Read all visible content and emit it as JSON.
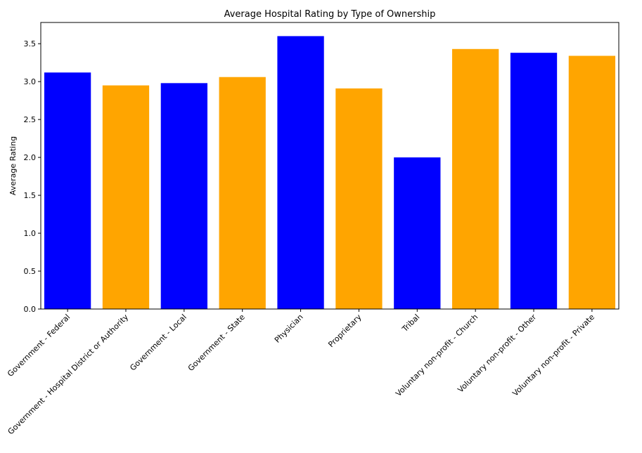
{
  "chart_data": {
    "type": "bar",
    "title": "Average Hospital Rating by Type of Ownership",
    "xlabel": "",
    "ylabel": "Average Rating",
    "ylim": [
      0,
      3.78
    ],
    "yticks": [
      0.0,
      0.5,
      1.0,
      1.5,
      2.0,
      2.5,
      3.0,
      3.5
    ],
    "ytick_labels": [
      "0.0",
      "0.5",
      "1.0",
      "1.5",
      "2.0",
      "2.5",
      "3.0",
      "3.5"
    ],
    "grid": false,
    "categories": [
      "Government - Federal",
      "Government - Hospital District or Authority",
      "Government - Local",
      "Government - State",
      "Physician",
      "Proprietary",
      "Tribal",
      "Voluntary non-profit - Church",
      "Voluntary non-profit - Other",
      "Voluntary non-profit - Private"
    ],
    "values": [
      3.12,
      2.95,
      2.98,
      3.06,
      3.6,
      2.91,
      2.0,
      3.43,
      3.38,
      3.34
    ],
    "colors": [
      "#0000ff",
      "#ffa500",
      "#0000ff",
      "#ffa500",
      "#0000ff",
      "#ffa500",
      "#0000ff",
      "#ffa500",
      "#0000ff",
      "#ffa500"
    ]
  }
}
